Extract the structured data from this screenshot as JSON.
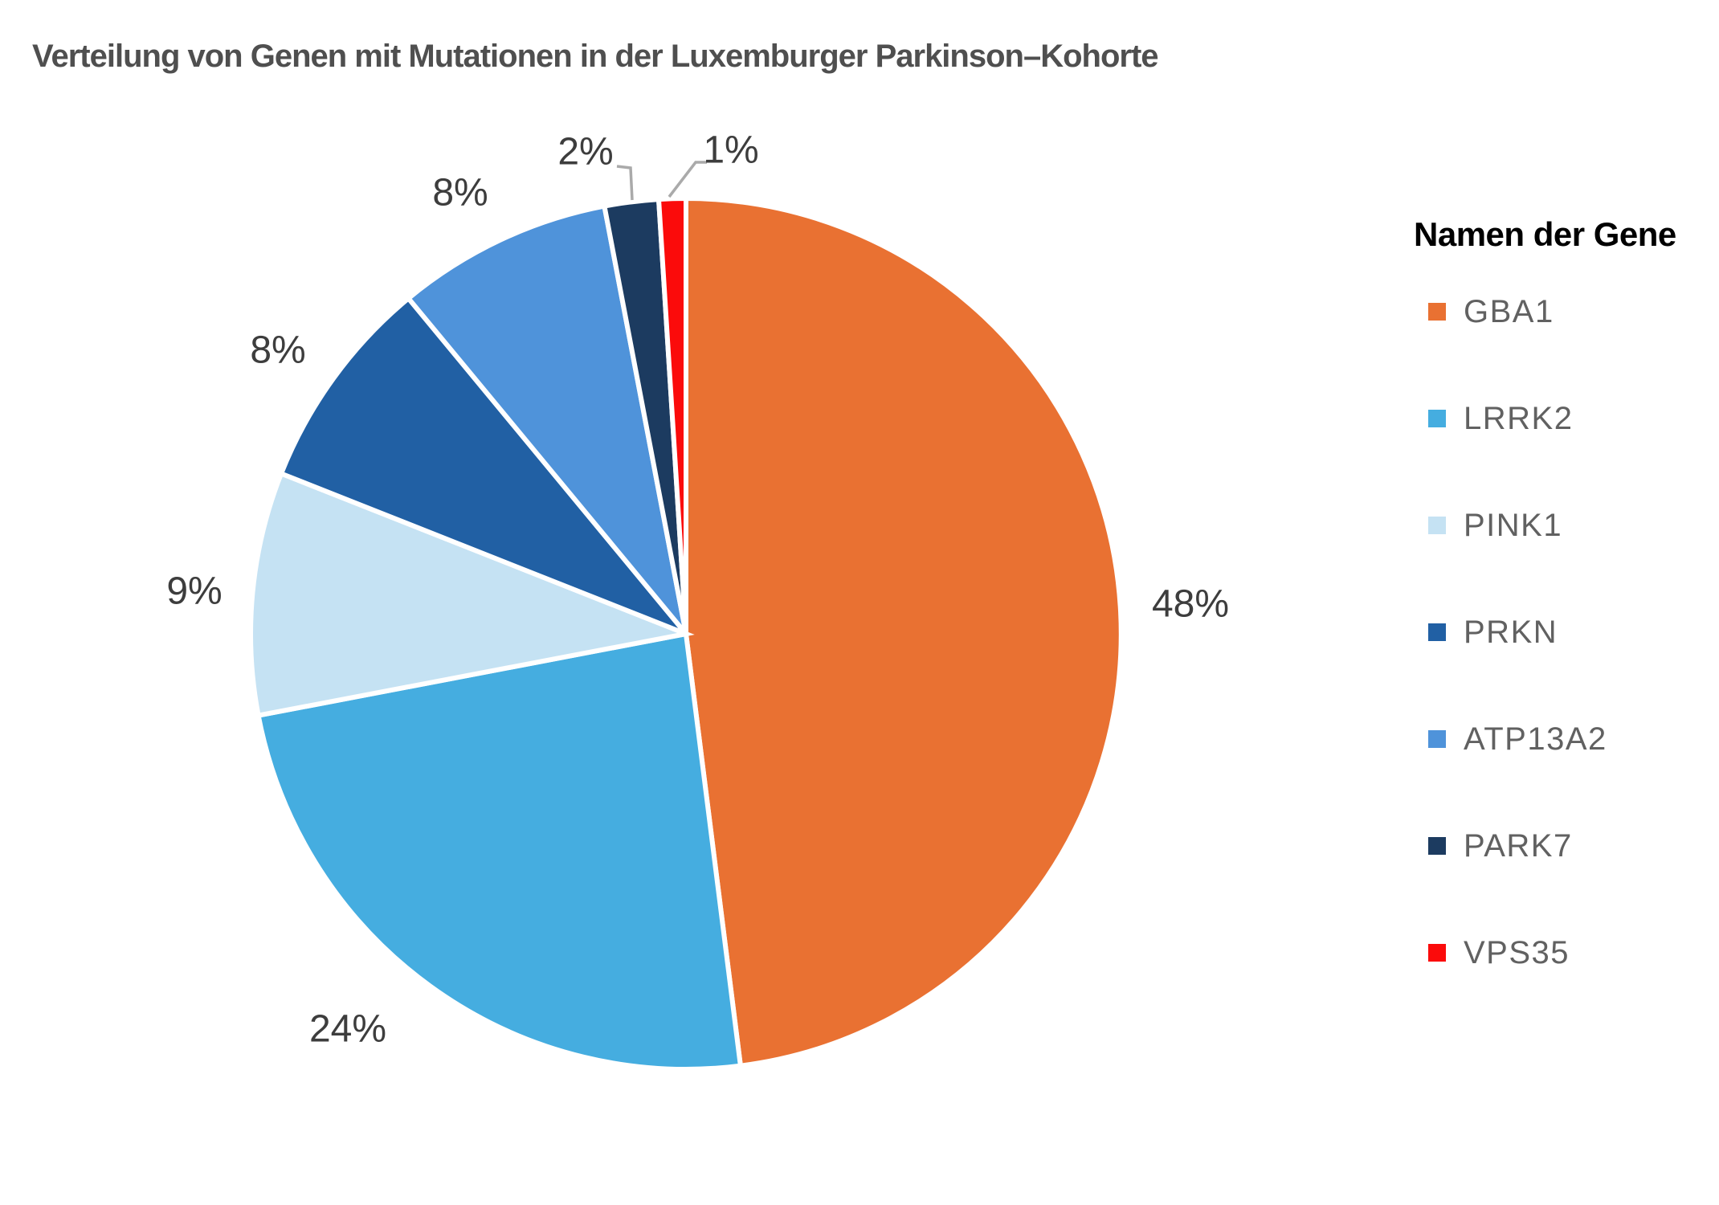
{
  "title": "Verteilung von Genen mit Mutationen in der Luxemburger Parkinson–Kohorte",
  "chart_data": {
    "type": "pie",
    "title": "Verteilung von Genen mit Mutationen in der Luxemburger Parkinson–Kohorte",
    "legend_title": "Namen der Gene",
    "legend_position": "right",
    "start_angle_deg": 0,
    "direction": "clockwise",
    "categories": [
      "GBA1",
      "LRRK2",
      "PINK1",
      "PRKN",
      "ATP13A2",
      "PARK7",
      "VPS35"
    ],
    "values": [
      48,
      24,
      9,
      8,
      8,
      2,
      1
    ],
    "slices": [
      {
        "label": "GBA1",
        "value": 48,
        "display": "48%",
        "color": "#E97132"
      },
      {
        "label": "LRRK2",
        "value": 24,
        "display": "24%",
        "color": "#45ADE0"
      },
      {
        "label": "PINK1",
        "value": 9,
        "display": "9%",
        "color": "#C5E2F3"
      },
      {
        "label": "PRKN",
        "value": 8,
        "display": "8%",
        "color": "#2160A4"
      },
      {
        "label": "ATP13A2",
        "value": 8,
        "display": "8%",
        "color": "#4F93DA"
      },
      {
        "label": "PARK7",
        "value": 2,
        "display": "2%",
        "color": "#1C3B60"
      },
      {
        "label": "VPS35",
        "value": 1,
        "display": "1%",
        "color": "#FB0B0B"
      }
    ]
  },
  "colors": {
    "background": "#FFFFFF",
    "title_text": "#4F4F4F",
    "percent_label_text": "#3D3D3D",
    "legend_title_text": "#000000",
    "legend_label_text": "#616161",
    "leader_line": "#AAAAAA",
    "slice_gap": "#FFFFFF"
  }
}
